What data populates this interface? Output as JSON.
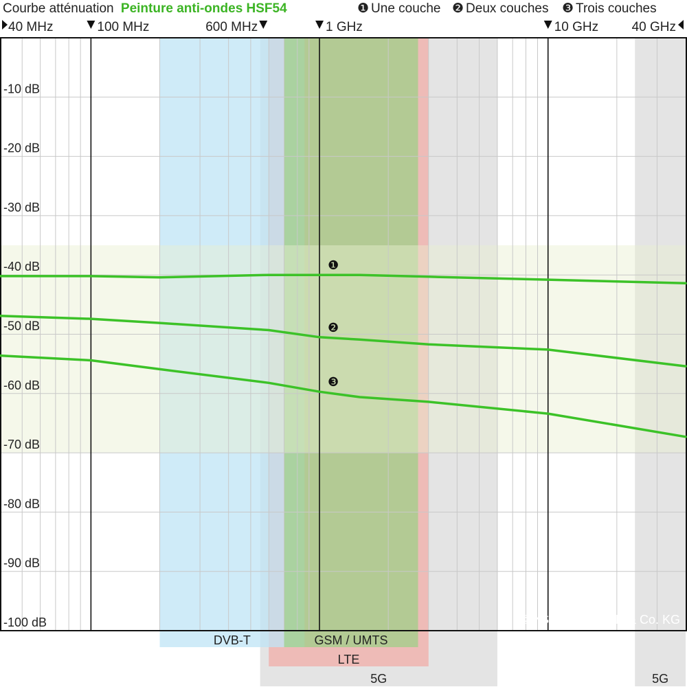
{
  "chart_data": {
    "type": "line",
    "title_prefix": "Courbe atténuation",
    "title_product": "Peinture anti-ondes HSF54",
    "title_color": "#3cb424",
    "line_color": "#3cc228",
    "legend": [
      {
        "marker": "❶",
        "label": "Une couche"
      },
      {
        "marker": "❷",
        "label": "Deux couches"
      },
      {
        "marker": "❸",
        "label": "Trois couches"
      }
    ],
    "x_scale": "log",
    "x_unit": "MHz",
    "xlim": [
      40,
      40000
    ],
    "ylim": [
      -100,
      0
    ],
    "y_ticks": [
      -10,
      -20,
      -30,
      -40,
      -50,
      -60,
      -70,
      -80,
      -90,
      -100
    ],
    "y_tick_labels": [
      "-10 dB",
      "-20 dB",
      "-30 dB",
      "-40 dB",
      "-50 dB",
      "-60 dB",
      "-70 dB",
      "-80 dB",
      "-90 dB",
      "-100 dB"
    ],
    "x_markers": [
      {
        "label": "40 MHz",
        "value": 40
      },
      {
        "label": "100 MHz",
        "value": 100
      },
      {
        "label": "600 MHz",
        "value": 600
      },
      {
        "label": "1 GHz",
        "value": 1000
      },
      {
        "label": "10 GHz",
        "value": 10000
      },
      {
        "label": "40 GHz",
        "value": 40000
      }
    ],
    "series": [
      {
        "marker": "❶",
        "x": [
          40,
          100,
          200,
          600,
          1000,
          1500,
          3000,
          10000,
          40000
        ],
        "y": [
          -40.2,
          -40.2,
          -40.4,
          -40.0,
          -40.0,
          -40.0,
          -40.3,
          -40.8,
          -41.4
        ]
      },
      {
        "marker": "❷",
        "x": [
          40,
          100,
          200,
          600,
          1000,
          1500,
          3000,
          10000,
          40000
        ],
        "y": [
          -46.9,
          -47.4,
          -48.1,
          -49.3,
          -50.5,
          -50.9,
          -51.7,
          -52.6,
          -55.4
        ]
      },
      {
        "marker": "❸",
        "x": [
          40,
          100,
          200,
          600,
          1000,
          1500,
          3000,
          10000,
          40000
        ],
        "y": [
          -53.6,
          -54.4,
          -55.9,
          -58.2,
          -59.7,
          -60.6,
          -61.4,
          -63.4,
          -67.3
        ]
      }
    ],
    "highlight_band": {
      "y_range": [
        -35,
        -70
      ],
      "color": "#e8f0d0"
    },
    "bands": [
      {
        "label": "DVB-T",
        "x_range": [
          200,
          860
        ],
        "color": "#bfe4f6",
        "label_row": 1
      },
      {
        "label": "GSM / UMTS",
        "x_range": [
          700,
          2700
        ],
        "color": "#9fcf88",
        "label_row": 1
      },
      {
        "label": "LTE",
        "x_range": [
          600,
          3000
        ],
        "color": "#f2aaa4",
        "label_row": 2
      },
      {
        "label": "5G",
        "x_range": [
          550,
          6000
        ],
        "color": "#d8d8d8",
        "label_row": 3
      },
      {
        "label": "5G",
        "x_range": [
          24000,
          40000
        ],
        "color": "#d8d8d8",
        "label_row": 3
      }
    ],
    "watermark": "© YSHIELD GmbH & Co. KG"
  }
}
